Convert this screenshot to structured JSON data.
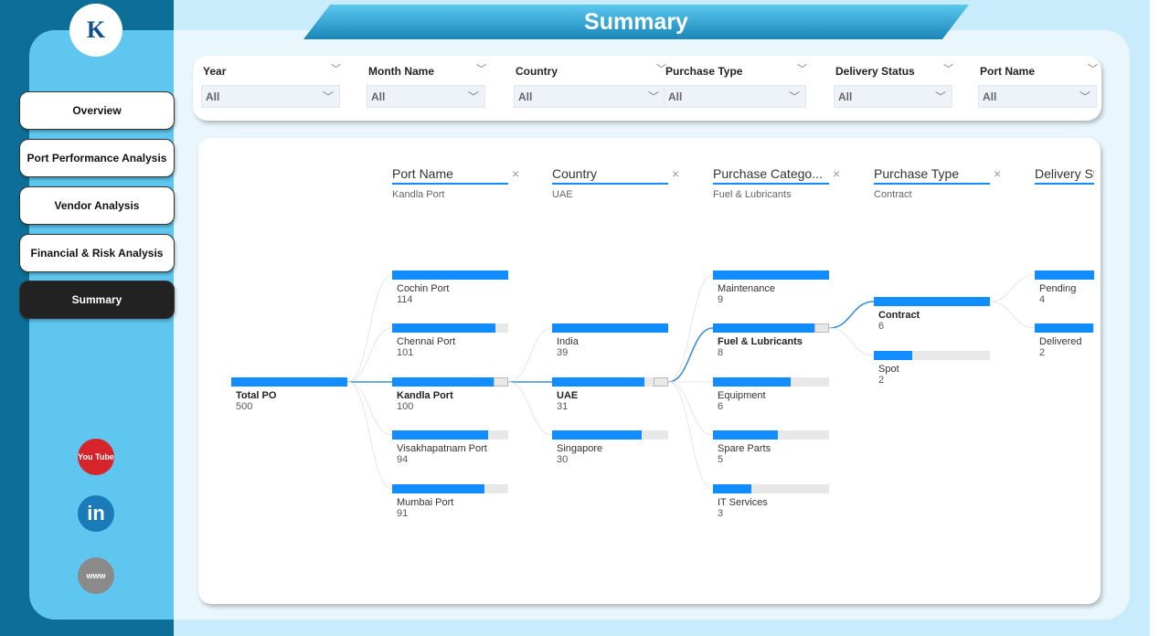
{
  "title": "Summary",
  "nav": [
    {
      "label": "Overview"
    },
    {
      "label": "Port Performance Analysis"
    },
    {
      "label": "Vendor Analysis"
    },
    {
      "label": "Financial & Risk Analysis"
    },
    {
      "label": "Summary",
      "active": true
    }
  ],
  "social": [
    {
      "icon": "youtube-icon",
      "text": "You Tube",
      "color": "#d7262b"
    },
    {
      "icon": "linkedin-icon",
      "text": "in",
      "color": "#1b7ab8"
    },
    {
      "icon": "globe-www-icon",
      "text": "www",
      "color": "#8a8a8a"
    }
  ],
  "filters": [
    {
      "label": "Year",
      "value": "All"
    },
    {
      "label": "Month Name",
      "value": "All"
    },
    {
      "label": "Country",
      "value": "All"
    },
    {
      "label": "Purchase Type",
      "value": "All"
    },
    {
      "label": "Delivery Status",
      "value": "All"
    },
    {
      "label": "Port Name",
      "value": "All"
    }
  ],
  "accent": "#118dff",
  "tree": {
    "root": {
      "label": "Total PO",
      "value": 500
    },
    "levels": [
      {
        "header": "Port Name",
        "selected": "Kandla Port",
        "nodes": [
          {
            "label": "Cochin Port",
            "value": 114
          },
          {
            "label": "Chennai Port",
            "value": 101
          },
          {
            "label": "Kandla Port",
            "value": 100
          },
          {
            "label": "Visakhapatnam Port",
            "value": 94
          },
          {
            "label": "Mumbai Port",
            "value": 91
          }
        ]
      },
      {
        "header": "Country",
        "selected": "UAE",
        "nodes": [
          {
            "label": "India",
            "value": 39
          },
          {
            "label": "UAE",
            "value": 31
          },
          {
            "label": "Singapore",
            "value": 30
          }
        ]
      },
      {
        "header": "Purchase Catego...",
        "selected": "Fuel & Lubricants",
        "nodes": [
          {
            "label": "Maintenance",
            "value": 9
          },
          {
            "label": "Fuel & Lubricants",
            "value": 8
          },
          {
            "label": "Equipment",
            "value": 6
          },
          {
            "label": "Spare Parts",
            "value": 5
          },
          {
            "label": "IT Services",
            "value": 3
          }
        ]
      },
      {
        "header": "Purchase Type",
        "selected": "Contract",
        "nodes": [
          {
            "label": "Contract",
            "value": 6
          },
          {
            "label": "Spot",
            "value": 2
          }
        ]
      },
      {
        "header": "Delivery St",
        "selected": "",
        "nodes": [
          {
            "label": "Pending",
            "value": 4
          },
          {
            "label": "Delivered",
            "value": 2
          }
        ]
      }
    ]
  }
}
